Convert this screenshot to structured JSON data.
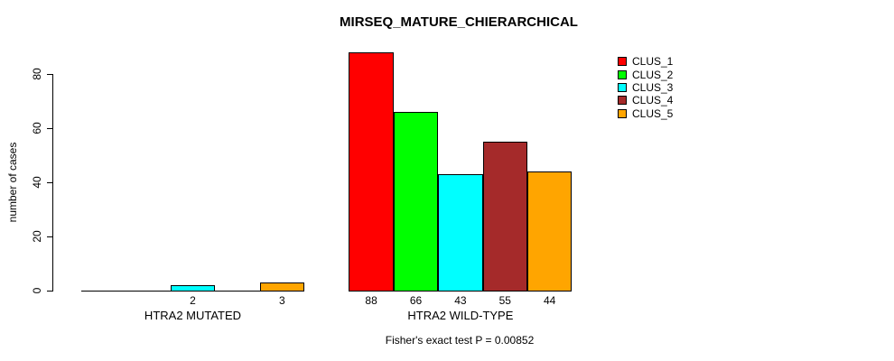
{
  "chart_data": {
    "type": "bar",
    "title": "MIRSEQ_MATURE_CHIERARCHICAL",
    "ylabel": "number of cases",
    "xlabel": "",
    "subtitle": "Fisher's exact test P = 0.00852",
    "categories": [
      "HTRA2 MUTATED",
      "HTRA2 WILD-TYPE"
    ],
    "series": [
      {
        "name": "CLUS_1",
        "color": "#FF0000",
        "values": [
          0,
          88
        ]
      },
      {
        "name": "CLUS_2",
        "color": "#00FF00",
        "values": [
          0,
          66
        ]
      },
      {
        "name": "CLUS_3",
        "color": "#00FFFF",
        "values": [
          2,
          43
        ]
      },
      {
        "name": "CLUS_4",
        "color": "#A52A2A",
        "values": [
          0,
          55
        ]
      },
      {
        "name": "CLUS_5",
        "color": "#FFA500",
        "values": [
          3,
          44
        ]
      }
    ],
    "bar_labels": [
      [
        "",
        "",
        "2",
        "",
        "3"
      ],
      [
        "88",
        "66",
        "43",
        "55",
        "44"
      ]
    ],
    "yticks": [
      0,
      20,
      40,
      60,
      80
    ],
    "ylim": [
      0,
      88
    ],
    "grid": false,
    "legend_position": "right",
    "axis_color": "#000000",
    "background": "#FFFFFF"
  }
}
